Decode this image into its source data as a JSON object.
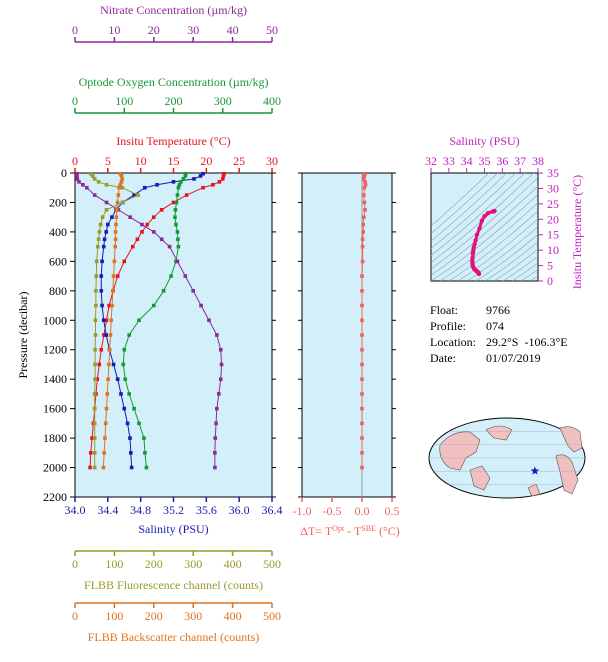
{
  "colors": {
    "temperature": "#e8141c",
    "salinity": "#1a1ab5",
    "oxygen": "#159933",
    "nitrate": "#8c2a96",
    "fluorescence": "#9a9a2a",
    "backscatter": "#e0731e",
    "delta_t": "#f06060",
    "ts_curve": "#e0147a",
    "ts_axis": "#c020c0",
    "panel_bg": "#d3effa"
  },
  "info": {
    "float_label": "Float:",
    "float_value": "9766",
    "profile_label": "Profile:",
    "profile_value": "074",
    "location_label": "Location:",
    "location_value": "29.2°S  -106.3°E",
    "date_label": "Date:",
    "date_value": "01/07/2019"
  },
  "chart_data": [
    {
      "type": "line",
      "panel": "profiles",
      "ylabel": "Pressure (decibar)",
      "ylim": [
        2200,
        0
      ],
      "yticks": [
        0,
        200,
        400,
        600,
        800,
        1000,
        1200,
        1400,
        1600,
        1800,
        2000,
        2200
      ],
      "axes": [
        {
          "id": "nitrate",
          "label": "Nitrate Concentration (µm/kg)",
          "range": [
            0,
            50
          ],
          "ticks": [
            0,
            10,
            20,
            30,
            40,
            50
          ]
        },
        {
          "id": "oxygen",
          "label": "Optode Oxygen Concentration (µm/kg)",
          "range": [
            0,
            400
          ],
          "ticks": [
            0,
            100,
            200,
            300,
            400
          ]
        },
        {
          "id": "temperature",
          "label": "Insitu Temperature (°C)",
          "range": [
            0,
            30
          ],
          "ticks": [
            0,
            5,
            10,
            15,
            20,
            25,
            30
          ]
        },
        {
          "id": "salinity",
          "label": "Salinity (PSU)",
          "range": [
            34.0,
            36.4
          ],
          "ticks": [
            "34.0",
            "34.4",
            "34.8",
            "35.2",
            "35.6",
            "36.0",
            "36.4"
          ]
        },
        {
          "id": "fluorescence",
          "label": "FLBB Fluorescence channel (counts)",
          "range": [
            0,
            500
          ],
          "ticks": [
            0,
            100,
            200,
            300,
            400,
            500
          ]
        },
        {
          "id": "backscatter",
          "label": "FLBB Backscatter channel (counts)",
          "range": [
            0,
            500
          ],
          "ticks": [
            0,
            100,
            200,
            300,
            400,
            500
          ]
        }
      ],
      "series": [
        {
          "axis": "temperature",
          "pressure": [
            5,
            20,
            40,
            60,
            80,
            100,
            150,
            200,
            250,
            300,
            350,
            400,
            450,
            500,
            600,
            700,
            800,
            900,
            1000,
            1100,
            1200,
            1300,
            1400,
            1500,
            1600,
            1700,
            1800,
            1900,
            2000
          ],
          "values": [
            22.7,
            22.6,
            22.5,
            22.0,
            21.0,
            19.5,
            17.0,
            15.0,
            13.2,
            12.0,
            11.0,
            10.2,
            9.5,
            8.8,
            7.5,
            6.5,
            5.8,
            5.2,
            4.8,
            4.4,
            4.0,
            3.7,
            3.4,
            3.2,
            3.0,
            2.8,
            2.6,
            2.4,
            2.3
          ]
        },
        {
          "axis": "salinity",
          "pressure": [
            5,
            20,
            40,
            60,
            80,
            100,
            150,
            200,
            250,
            300,
            350,
            400,
            450,
            500,
            600,
            700,
            800,
            900,
            1000,
            1100,
            1200,
            1300,
            1400,
            1500,
            1600,
            1700,
            1800,
            1900,
            2000
          ],
          "values": [
            35.56,
            35.53,
            35.45,
            35.2,
            35.0,
            34.85,
            34.72,
            34.58,
            34.5,
            34.45,
            34.4,
            34.38,
            34.36,
            34.35,
            34.33,
            34.32,
            34.32,
            34.33,
            34.35,
            34.38,
            34.42,
            34.47,
            34.52,
            34.56,
            34.6,
            34.64,
            34.67,
            34.68,
            34.69
          ]
        },
        {
          "axis": "oxygen",
          "pressure": [
            5,
            20,
            40,
            60,
            80,
            100,
            150,
            200,
            250,
            300,
            350,
            400,
            450,
            500,
            600,
            700,
            800,
            900,
            1000,
            1100,
            1200,
            1300,
            1400,
            1500,
            1600,
            1700,
            1800,
            1900,
            2000
          ],
          "values": [
            225,
            224,
            220,
            215,
            212,
            210,
            208,
            206,
            204,
            203,
            205,
            208,
            209,
            210,
            205,
            195,
            180,
            160,
            130,
            110,
            100,
            98,
            102,
            110,
            120,
            130,
            140,
            142,
            145
          ]
        },
        {
          "axis": "nitrate",
          "pressure": [
            5,
            20,
            40,
            60,
            80,
            100,
            150,
            200,
            250,
            300,
            350,
            400,
            450,
            500,
            600,
            700,
            800,
            900,
            1000,
            1100,
            1200,
            1300,
            1400,
            1500,
            1600,
            1700,
            1800,
            1900,
            2000
          ],
          "values": [
            0.5,
            0.5,
            0.6,
            1.0,
            2.0,
            3.0,
            5.0,
            8.0,
            11.0,
            14.0,
            17.0,
            20.0,
            22.0,
            24.0,
            26.0,
            28.0,
            30.0,
            32.0,
            34.0,
            36.0,
            37.0,
            37.2,
            37.0,
            36.5,
            36.0,
            35.8,
            35.6,
            35.5,
            35.5
          ]
        },
        {
          "axis": "fluorescence",
          "pressure": [
            5,
            20,
            40,
            60,
            80,
            100,
            150,
            200,
            250,
            300,
            350,
            400,
            450,
            500,
            600,
            700,
            800,
            900,
            1000,
            1100,
            1200,
            1300,
            1400,
            1500,
            1600,
            1700,
            1800,
            1900,
            2000
          ],
          "values": [
            40,
            45,
            50,
            60,
            80,
            120,
            160,
            120,
            80,
            70,
            65,
            62,
            60,
            58,
            55,
            54,
            53,
            53,
            52,
            52,
            51,
            51,
            51,
            50,
            50,
            50,
            50,
            50,
            50
          ]
        },
        {
          "axis": "backscatter",
          "pressure": [
            5,
            20,
            40,
            60,
            80,
            100,
            150,
            200,
            250,
            300,
            350,
            400,
            450,
            500,
            600,
            700,
            800,
            900,
            1000,
            1100,
            1200,
            1300,
            1400,
            1500,
            1600,
            1700,
            1800,
            1900,
            2000
          ],
          "values": [
            115,
            118,
            120,
            118,
            115,
            112,
            110,
            108,
            106,
            105,
            104,
            103,
            103,
            102,
            100,
            98,
            96,
            94,
            92,
            90,
            88,
            86,
            84,
            82,
            80,
            78,
            76,
            74,
            72
          ]
        }
      ]
    },
    {
      "type": "scatter",
      "panel": "delta_t",
      "xlabel": "ΔT= T^Opt - T^SBE (°C)",
      "xlim": [
        -1.0,
        0.5
      ],
      "xticks": [
        "-1.0",
        "-0.5",
        "0.0",
        "0.5"
      ],
      "ylim": [
        2200,
        0
      ],
      "pressure": [
        5,
        20,
        40,
        60,
        80,
        100,
        150,
        200,
        250,
        300,
        350,
        400,
        450,
        500,
        600,
        700,
        800,
        900,
        1000,
        1100,
        1200,
        1300,
        1400,
        1500,
        1600,
        1700,
        1800,
        1900,
        2000
      ],
      "values": [
        0.05,
        0.04,
        0.03,
        0.05,
        0.06,
        0.04,
        0.03,
        0.04,
        0.05,
        0.03,
        0.02,
        0.02,
        0.01,
        0.01,
        0.01,
        0.0,
        0.0,
        0.0,
        0.0,
        0.0,
        0.0,
        0.0,
        0.0,
        0.0,
        0.0,
        0.0,
        0.0,
        0.0,
        0.0
      ]
    },
    {
      "type": "scatter",
      "panel": "ts",
      "xlabel": "Salinity (PSU)",
      "ylabel": "Insitu Temperature (°C)",
      "xlim": [
        32,
        38
      ],
      "xticks": [
        32,
        33,
        34,
        35,
        36,
        37,
        38
      ],
      "ylim": [
        0,
        35
      ],
      "yticks": [
        0,
        5,
        10,
        15,
        20,
        25,
        30,
        35
      ],
      "salinity": [
        35.56,
        35.53,
        35.45,
        35.2,
        35.0,
        34.85,
        34.72,
        34.58,
        34.5,
        34.45,
        34.4,
        34.38,
        34.36,
        34.35,
        34.33,
        34.32,
        34.32,
        34.33,
        34.35,
        34.38,
        34.42,
        34.47,
        34.52,
        34.56,
        34.6,
        34.64,
        34.67,
        34.68,
        34.69
      ],
      "temperature": [
        22.7,
        22.6,
        22.5,
        22.0,
        21.0,
        19.5,
        17.0,
        15.0,
        13.2,
        12.0,
        11.0,
        10.2,
        9.5,
        8.8,
        7.5,
        6.5,
        5.8,
        5.2,
        4.8,
        4.4,
        4.0,
        3.7,
        3.4,
        3.2,
        3.0,
        2.8,
        2.6,
        2.4,
        2.3
      ]
    }
  ]
}
